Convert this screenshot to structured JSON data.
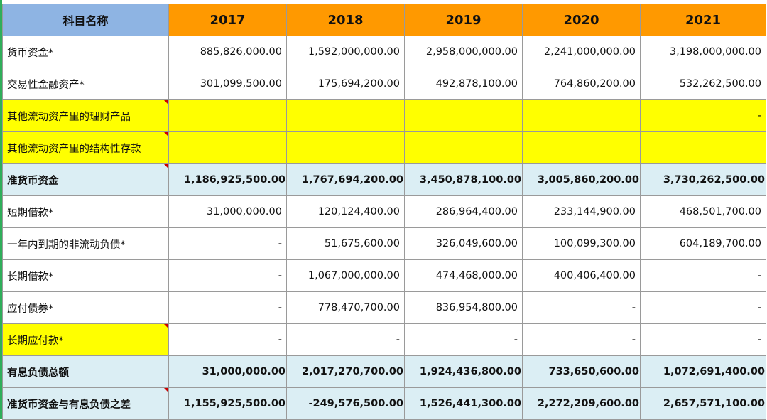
{
  "header": {
    "name_col": "科目名称",
    "years": [
      "2017",
      "2018",
      "2019",
      "2020",
      "2021"
    ]
  },
  "rows": [
    {
      "label": "货币资金*",
      "values": [
        "885,826,000.00",
        "1,592,000,000.00",
        "2,958,000,000.00",
        "2,241,000,000.00",
        "3,198,000,000.00"
      ]
    },
    {
      "label": "交易性金融资产*",
      "values": [
        "301,099,500.00",
        "175,694,200.00",
        "492,878,100.00",
        "764,860,200.00",
        "532,262,500.00"
      ]
    },
    {
      "label": "其他流动资产里的理财产品",
      "values": [
        "",
        "",
        "",
        "",
        "-"
      ]
    },
    {
      "label": "其他流动资产里的结构性存款",
      "values": [
        "",
        "",
        "",
        "",
        ""
      ]
    },
    {
      "label": "准货币资金",
      "values": [
        "1,186,925,500.00",
        "1,767,694,200.00",
        "3,450,878,100.00",
        "3,005,860,200.00",
        "3,730,262,500.00"
      ]
    },
    {
      "label": "短期借款*",
      "values": [
        "31,000,000.00",
        "120,124,400.00",
        "286,964,400.00",
        "233,144,900.00",
        "468,501,700.00"
      ]
    },
    {
      "label": "一年内到期的非流动负债*",
      "values": [
        "-",
        "51,675,600.00",
        "326,049,600.00",
        "100,099,300.00",
        "604,189,700.00"
      ]
    },
    {
      "label": "长期借款*",
      "values": [
        "-",
        "1,067,000,000.00",
        "474,468,000.00",
        "400,406,400.00",
        "-"
      ]
    },
    {
      "label": "应付债券*",
      "values": [
        "-",
        "778,470,700.00",
        "836,954,800.00",
        "-",
        "-"
      ]
    },
    {
      "label": "长期应付款*",
      "values": [
        "-",
        "-",
        "-",
        "-",
        "-"
      ]
    },
    {
      "label": "有息负债总额",
      "values": [
        "31,000,000.00",
        "2,017,270,700.00",
        "1,924,436,800.00",
        "733,650,600.00",
        "1,072,691,400.00"
      ]
    },
    {
      "label": "准货币资金与有息负债之差",
      "values": [
        "1,155,925,500.00",
        "-249,576,500.00",
        "1,526,441,300.00",
        "2,272,209,600.00",
        "2,657,571,100.00"
      ]
    }
  ],
  "colors": {
    "name_header_bg": "#8eb4e3",
    "year_header_bg": "#ff9900",
    "highlight_yellow": "#ffff00",
    "subtotal_bg": "#dbeef4",
    "comment_marker": "#cc0000"
  }
}
